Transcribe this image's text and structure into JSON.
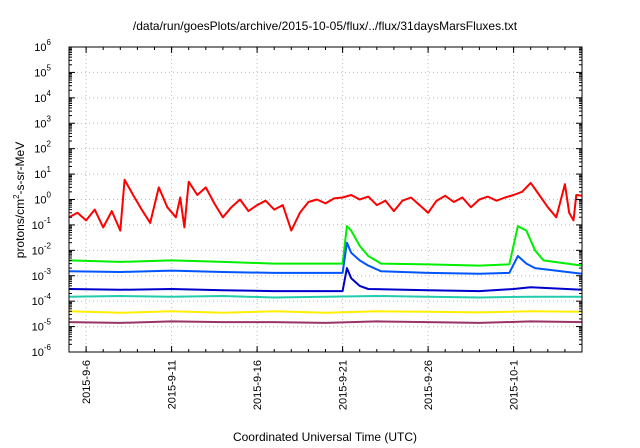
{
  "chart_data": {
    "type": "line",
    "title": "/data/run/goesPlots/archive/2015-10-05/flux/../flux/31daysMarsFluxes.txt",
    "xlabel": "Coordinated Universal Time (UTC)",
    "ylabel_parts": [
      "protons/cm",
      "2",
      "-s-sr-MeV"
    ],
    "y_scale": "log",
    "ylim": [
      1e-06,
      1000000.0
    ],
    "y_ticks": [
      {
        "base": "10",
        "exp": "-6",
        "value": -6
      },
      {
        "base": "10",
        "exp": "-5",
        "value": -5
      },
      {
        "base": "10",
        "exp": "-4",
        "value": -4
      },
      {
        "base": "10",
        "exp": "-3",
        "value": -3
      },
      {
        "base": "10",
        "exp": "-2",
        "value": -2
      },
      {
        "base": "10",
        "exp": "-1",
        "value": -1
      },
      {
        "base": "10",
        "exp": "0",
        "value": 0
      },
      {
        "base": "10",
        "exp": "1",
        "value": 1
      },
      {
        "base": "10",
        "exp": "2",
        "value": 2
      },
      {
        "base": "10",
        "exp": "3",
        "value": 3
      },
      {
        "base": "10",
        "exp": "4",
        "value": 4
      },
      {
        "base": "10",
        "exp": "5",
        "value": 5
      },
      {
        "base": "10",
        "exp": "6",
        "value": 6
      }
    ],
    "xlim": [
      "2015-09-05T00:00",
      "2015-10-05T00:00"
    ],
    "x_ticks": [
      {
        "label": "2015-9-6",
        "date": "2015-09-06"
      },
      {
        "label": "2015-9-11",
        "date": "2015-09-11"
      },
      {
        "label": "2015-9-16",
        "date": "2015-09-16"
      },
      {
        "label": "2015-9-21",
        "date": "2015-09-21"
      },
      {
        "label": "2015-9-26",
        "date": "2015-09-26"
      },
      {
        "label": "2015-10-1",
        "date": "2015-10-01"
      }
    ],
    "grid": true,
    "series": [
      {
        "color": "#ff0000",
        "points": [
          [
            "2015-09-05T00:00",
            0.2
          ],
          [
            "2015-09-05T12:00",
            0.3
          ],
          [
            "2015-09-06T00:00",
            0.15
          ],
          [
            "2015-09-06T12:00",
            0.4
          ],
          [
            "2015-09-07T00:00",
            0.08
          ],
          [
            "2015-09-07T12:00",
            0.35
          ],
          [
            "2015-09-08T00:00",
            0.06
          ],
          [
            "2015-09-08T06:00",
            6
          ],
          [
            "2015-09-08T18:00",
            1.5
          ],
          [
            "2015-09-09T06:00",
            0.4
          ],
          [
            "2015-09-09T18:00",
            0.12
          ],
          [
            "2015-09-10T06:00",
            3
          ],
          [
            "2015-09-10T18:00",
            0.5
          ],
          [
            "2015-09-11T06:00",
            0.2
          ],
          [
            "2015-09-11T12:00",
            1.2
          ],
          [
            "2015-09-11T18:00",
            0.08
          ],
          [
            "2015-09-12T00:00",
            5
          ],
          [
            "2015-09-12T12:00",
            1.5
          ],
          [
            "2015-09-13T00:00",
            3
          ],
          [
            "2015-09-13T12:00",
            0.7
          ],
          [
            "2015-09-14T00:00",
            0.2
          ],
          [
            "2015-09-14T12:00",
            0.5
          ],
          [
            "2015-09-15T00:00",
            1.0
          ],
          [
            "2015-09-15T12:00",
            0.35
          ],
          [
            "2015-09-16T00:00",
            0.6
          ],
          [
            "2015-09-16T12:00",
            0.9
          ],
          [
            "2015-09-17T00:00",
            0.4
          ],
          [
            "2015-09-17T12:00",
            0.6
          ],
          [
            "2015-09-18T00:00",
            0.06
          ],
          [
            "2015-09-18T12:00",
            0.3
          ],
          [
            "2015-09-19T00:00",
            0.8
          ],
          [
            "2015-09-19T12:00",
            1.0
          ],
          [
            "2015-09-20T00:00",
            0.7
          ],
          [
            "2015-09-20T12:00",
            1.1
          ],
          [
            "2015-09-21T00:00",
            1.2
          ],
          [
            "2015-09-21T12:00",
            1.5
          ],
          [
            "2015-09-22T00:00",
            1.0
          ],
          [
            "2015-09-22T12:00",
            1.3
          ],
          [
            "2015-09-23T00:00",
            0.6
          ],
          [
            "2015-09-23T12:00",
            0.9
          ],
          [
            "2015-09-24T00:00",
            0.35
          ],
          [
            "2015-09-24T12:00",
            0.9
          ],
          [
            "2015-09-25T00:00",
            1.2
          ],
          [
            "2015-09-25T12:00",
            0.6
          ],
          [
            "2015-09-26T00:00",
            0.3
          ],
          [
            "2015-09-26T12:00",
            0.9
          ],
          [
            "2015-09-27T00:00",
            1.4
          ],
          [
            "2015-09-27T12:00",
            0.8
          ],
          [
            "2015-09-28T00:00",
            1.2
          ],
          [
            "2015-09-28T12:00",
            0.5
          ],
          [
            "2015-09-29T00:00",
            1.0
          ],
          [
            "2015-09-29T12:00",
            1.3
          ],
          [
            "2015-09-30T00:00",
            0.9
          ],
          [
            "2015-09-30T12:00",
            1.2
          ],
          [
            "2015-10-01T00:00",
            1.5
          ],
          [
            "2015-10-01T12:00",
            2.0
          ],
          [
            "2015-10-02T00:00",
            4.5
          ],
          [
            "2015-10-02T12:00",
            1.5
          ],
          [
            "2015-10-03T00:00",
            0.5
          ],
          [
            "2015-10-03T12:00",
            0.2
          ],
          [
            "2015-10-04T00:00",
            4
          ],
          [
            "2015-10-04T06:00",
            0.3
          ],
          [
            "2015-10-04T12:00",
            0.15
          ],
          [
            "2015-10-04T16:00",
            1.5
          ],
          [
            "2015-10-05T00:00",
            1.4
          ]
        ]
      },
      {
        "color": "#00ee00",
        "points": [
          [
            "2015-09-05T00:00",
            0.004
          ],
          [
            "2015-09-08T00:00",
            0.0035
          ],
          [
            "2015-09-11T00:00",
            0.004
          ],
          [
            "2015-09-14T00:00",
            0.0035
          ],
          [
            "2015-09-17T00:00",
            0.003
          ],
          [
            "2015-09-20T00:00",
            0.003
          ],
          [
            "2015-09-21T00:00",
            0.003
          ],
          [
            "2015-09-21T06:00",
            0.09
          ],
          [
            "2015-09-21T12:00",
            0.06
          ],
          [
            "2015-09-22T00:00",
            0.015
          ],
          [
            "2015-09-22T12:00",
            0.006
          ],
          [
            "2015-09-23T06:00",
            0.003
          ],
          [
            "2015-09-26T00:00",
            0.0028
          ],
          [
            "2015-09-29T00:00",
            0.0025
          ],
          [
            "2015-09-30T18:00",
            0.0028
          ],
          [
            "2015-10-01T06:00",
            0.09
          ],
          [
            "2015-10-01T18:00",
            0.06
          ],
          [
            "2015-10-02T06:00",
            0.01
          ],
          [
            "2015-10-02T18:00",
            0.004
          ],
          [
            "2015-10-05T00:00",
            0.0025
          ]
        ]
      },
      {
        "color": "#0055ff",
        "points": [
          [
            "2015-09-05T00:00",
            0.0015
          ],
          [
            "2015-09-08T00:00",
            0.0014
          ],
          [
            "2015-09-11T00:00",
            0.0016
          ],
          [
            "2015-09-14T00:00",
            0.0014
          ],
          [
            "2015-09-17T00:00",
            0.0013
          ],
          [
            "2015-09-20T00:00",
            0.0013
          ],
          [
            "2015-09-21T00:00",
            0.0013
          ],
          [
            "2015-09-21T06:00",
            0.02
          ],
          [
            "2015-09-21T12:00",
            0.008
          ],
          [
            "2015-09-22T00:00",
            0.004
          ],
          [
            "2015-09-22T12:00",
            0.0025
          ],
          [
            "2015-09-23T06:00",
            0.0015
          ],
          [
            "2015-09-26T00:00",
            0.0013
          ],
          [
            "2015-09-29T00:00",
            0.0012
          ],
          [
            "2015-09-30T18:00",
            0.0013
          ],
          [
            "2015-10-01T06:00",
            0.006
          ],
          [
            "2015-10-01T18:00",
            0.003
          ],
          [
            "2015-10-02T06:00",
            0.002
          ],
          [
            "2015-10-05T00:00",
            0.0012
          ]
        ]
      },
      {
        "color": "#0000cc",
        "points": [
          [
            "2015-09-05T00:00",
            0.0003
          ],
          [
            "2015-09-08T00:00",
            0.00028
          ],
          [
            "2015-09-11T00:00",
            0.0003
          ],
          [
            "2015-09-14T00:00",
            0.00027
          ],
          [
            "2015-09-17T00:00",
            0.00025
          ],
          [
            "2015-09-20T00:00",
            0.00025
          ],
          [
            "2015-09-21T00:00",
            0.00025
          ],
          [
            "2015-09-21T06:00",
            0.002
          ],
          [
            "2015-09-21T12:00",
            0.0008
          ],
          [
            "2015-09-22T00:00",
            0.0004
          ],
          [
            "2015-09-22T12:00",
            0.0003
          ],
          [
            "2015-09-26T00:00",
            0.00027
          ],
          [
            "2015-09-29T00:00",
            0.00025
          ],
          [
            "2015-10-01T00:00",
            0.0003
          ],
          [
            "2015-10-02T00:00",
            0.00035
          ],
          [
            "2015-10-05T00:00",
            0.00028
          ]
        ]
      },
      {
        "color": "#22ccaa",
        "points": [
          [
            "2015-09-05T00:00",
            0.00015
          ],
          [
            "2015-09-08T00:00",
            0.00016
          ],
          [
            "2015-09-11T00:00",
            0.00015
          ],
          [
            "2015-09-14T00:00",
            0.00016
          ],
          [
            "2015-09-17T00:00",
            0.00014
          ],
          [
            "2015-09-20T00:00",
            0.00015
          ],
          [
            "2015-09-23T00:00",
            0.00016
          ],
          [
            "2015-09-26T00:00",
            0.00015
          ],
          [
            "2015-09-29T00:00",
            0.00014
          ],
          [
            "2015-10-02T00:00",
            0.00015
          ],
          [
            "2015-10-05T00:00",
            0.00015
          ]
        ]
      },
      {
        "color": "#ffee00",
        "points": [
          [
            "2015-09-05T00:00",
            4e-05
          ],
          [
            "2015-09-08T00:00",
            3.5e-05
          ],
          [
            "2015-09-11T00:00",
            4e-05
          ],
          [
            "2015-09-14T00:00",
            3.5e-05
          ],
          [
            "2015-09-17T00:00",
            4e-05
          ],
          [
            "2015-09-20T00:00",
            3.5e-05
          ],
          [
            "2015-09-23T00:00",
            4e-05
          ],
          [
            "2015-09-26T00:00",
            3.8e-05
          ],
          [
            "2015-09-29T00:00",
            3.6e-05
          ],
          [
            "2015-10-02T00:00",
            4e-05
          ],
          [
            "2015-10-05T00:00",
            3.8e-05
          ]
        ]
      },
      {
        "color": "#993366",
        "points": [
          [
            "2015-09-05T00:00",
            1.5e-05
          ],
          [
            "2015-09-08T00:00",
            1.4e-05
          ],
          [
            "2015-09-11T00:00",
            1.6e-05
          ],
          [
            "2015-09-14T00:00",
            1.5e-05
          ],
          [
            "2015-09-17T00:00",
            1.5e-05
          ],
          [
            "2015-09-20T00:00",
            1.4e-05
          ],
          [
            "2015-09-23T00:00",
            1.6e-05
          ],
          [
            "2015-09-26T00:00",
            1.5e-05
          ],
          [
            "2015-09-29T00:00",
            1.4e-05
          ],
          [
            "2015-10-02T00:00",
            1.6e-05
          ],
          [
            "2015-10-05T00:00",
            1.5e-05
          ]
        ]
      }
    ]
  }
}
